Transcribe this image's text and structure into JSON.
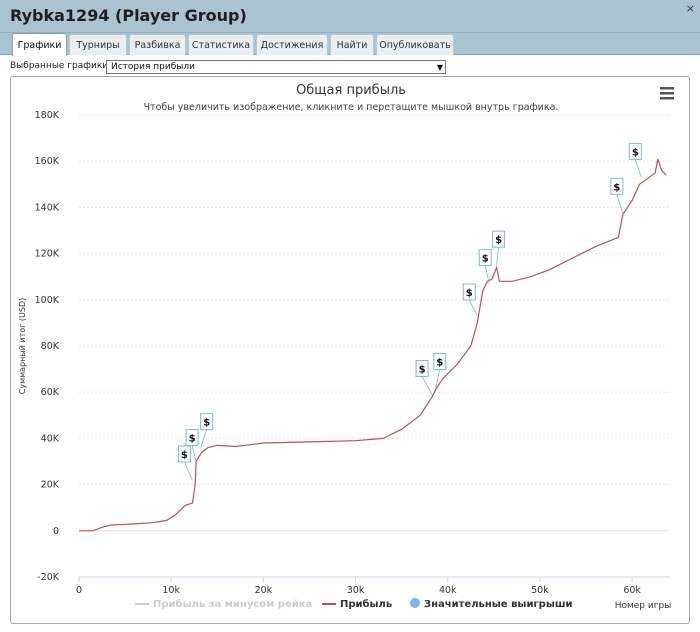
{
  "window": {
    "title": "Rybka1294 (Player Group)",
    "close_glyph": "×"
  },
  "tabs": [
    {
      "label": "Графики",
      "active": true
    },
    {
      "label": "Турниры"
    },
    {
      "label": "Разбивка"
    },
    {
      "label": "Статистика"
    },
    {
      "label": "Достижения"
    },
    {
      "label": "Найти"
    },
    {
      "label": "Опубликовать"
    }
  ],
  "chart_selector": {
    "label": "Выбранные графики:",
    "value": "История прибыли"
  },
  "chart_menu_icon": "hamburger-menu-icon",
  "colors": {
    "profit_line": "#c0504d",
    "rake_line": "#cccccc",
    "big_win_marker": "#7cb5ec",
    "titlebar": "#a9c3d1"
  },
  "chart_data": {
    "type": "line",
    "title": "Общая прибыль",
    "subtitle": "Чтобы увеличить изображение, кликните и перетащите мышкой внутрь графика.",
    "ylabel": "Суммарный итог (USD)",
    "xlabel": "Номер игры",
    "xlim": [
      0,
      64000
    ],
    "ylim": [
      -20000,
      180000
    ],
    "x_ticks": [
      "0",
      "10k",
      "20k",
      "30k",
      "40k",
      "50k",
      "60k"
    ],
    "y_ticks": [
      "180K",
      "160K",
      "140K",
      "120K",
      "100K",
      "80K",
      "60K",
      "40K",
      "20K",
      "0",
      "-20K"
    ],
    "grid": true,
    "legend_position": "bottom",
    "series": [
      {
        "name": "Прибыль за минусом рейка",
        "hidden": true,
        "points": []
      },
      {
        "name": "Прибыль",
        "points": [
          [
            0,
            0
          ],
          [
            1500,
            0
          ],
          [
            2500,
            1500
          ],
          [
            3500,
            2500
          ],
          [
            6000,
            3000
          ],
          [
            8000,
            3500
          ],
          [
            9500,
            4500
          ],
          [
            10500,
            7000
          ],
          [
            11500,
            11000
          ],
          [
            12300,
            12000
          ],
          [
            12600,
            20000
          ],
          [
            12700,
            30000
          ],
          [
            13300,
            34000
          ],
          [
            14000,
            36000
          ],
          [
            15000,
            37000
          ],
          [
            17000,
            36500
          ],
          [
            20000,
            38000
          ],
          [
            25000,
            38500
          ],
          [
            30000,
            39000
          ],
          [
            33000,
            40000
          ],
          [
            35000,
            44000
          ],
          [
            37000,
            50000
          ],
          [
            38300,
            58000
          ],
          [
            38800,
            62000
          ],
          [
            39500,
            66000
          ],
          [
            41000,
            72000
          ],
          [
            42500,
            80000
          ],
          [
            43200,
            90000
          ],
          [
            43800,
            104000
          ],
          [
            44300,
            108000
          ],
          [
            44800,
            109000
          ],
          [
            45300,
            114000
          ],
          [
            45600,
            108000
          ],
          [
            47000,
            108000
          ],
          [
            49000,
            110000
          ],
          [
            51000,
            113000
          ],
          [
            53000,
            117000
          ],
          [
            56000,
            123000
          ],
          [
            58500,
            127000
          ],
          [
            59000,
            137000
          ],
          [
            60000,
            143000
          ],
          [
            60800,
            150000
          ],
          [
            61500,
            152000
          ],
          [
            62500,
            155000
          ],
          [
            62800,
            161000
          ],
          [
            63200,
            156000
          ],
          [
            63700,
            154000
          ]
        ]
      }
    ],
    "big_wins": [
      {
        "x": 12300,
        "y": 22000,
        "label": "$"
      },
      {
        "x": 12700,
        "y": 30000,
        "label": "$"
      },
      {
        "x": 13200,
        "y": 36000,
        "label": "$"
      },
      {
        "x": 38300,
        "y": 59000,
        "label": "$"
      },
      {
        "x": 38700,
        "y": 62000,
        "label": "$"
      },
      {
        "x": 43200,
        "y": 93000,
        "label": "$"
      },
      {
        "x": 44500,
        "y": 107000,
        "label": "$"
      },
      {
        "x": 45300,
        "y": 115000,
        "label": "$"
      },
      {
        "x": 59000,
        "y": 137000,
        "label": "$"
      },
      {
        "x": 61000,
        "y": 153000,
        "label": "$"
      }
    ],
    "legend": [
      {
        "label": "Прибыль за минусом рейка",
        "hidden": true
      },
      {
        "label": "Прибыль"
      },
      {
        "label": "Значительные выигрыши"
      }
    ]
  }
}
